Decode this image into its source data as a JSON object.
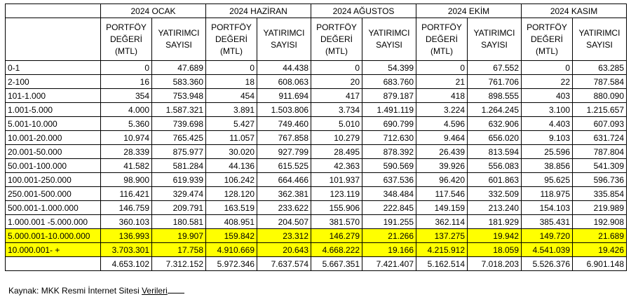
{
  "periods": [
    "2024 OCAK",
    "2024 HAZİRAN",
    "2024 AĞUSTOS",
    "2024 EKİM",
    "2024 KASIM"
  ],
  "columns": {
    "portfolio": [
      "PORTFÖY",
      "DEĞERİ",
      "(MTL)"
    ],
    "investors": [
      "YATIRIMCI",
      "SAYISI"
    ]
  },
  "rows": [
    {
      "label": "0-1",
      "values": [
        "0",
        "47.689",
        "0",
        "44.438",
        "0",
        "54.399",
        "0",
        "67.552",
        "0",
        "63.285"
      ]
    },
    {
      "label": "2-100",
      "values": [
        "16",
        "583.360",
        "18",
        "608.063",
        "20",
        "683.760",
        "21",
        "761.706",
        "22",
        "787.584"
      ]
    },
    {
      "label": "101-1.000",
      "values": [
        "354",
        "753.948",
        "454",
        "911.694",
        "417",
        "879.187",
        "418",
        "898.555",
        "403",
        "880.090"
      ]
    },
    {
      "label": "1.001-5.000",
      "values": [
        "4.000",
        "1.587.321",
        "3.891",
        "1.503.806",
        "3.734",
        "1.491.119",
        "3.224",
        "1.264.245",
        "3.100",
        "1.215.657"
      ]
    },
    {
      "label": "5.001-10.000",
      "values": [
        "5.360",
        "739.698",
        "5.427",
        "749.460",
        "5.010",
        "690.799",
        "4.596",
        "632.906",
        "4.403",
        "607.093"
      ]
    },
    {
      "label": "10.001-20.000",
      "values": [
        "10.974",
        "765.425",
        "11.057",
        "767.858",
        "10.279",
        "712.630",
        "9.464",
        "656.020",
        "9.103",
        "631.724"
      ]
    },
    {
      "label": "20.001-50.000",
      "values": [
        "28.339",
        "875.977",
        "30.020",
        "927.799",
        "28.495",
        "878.392",
        "26.439",
        "813.594",
        "25.596",
        "787.804"
      ]
    },
    {
      "label": "50.001-100.000",
      "values": [
        "41.582",
        "581.284",
        "44.136",
        "615.525",
        "42.363",
        "590.569",
        "39.926",
        "556.083",
        "38.856",
        "541.309"
      ]
    },
    {
      "label": "100.001-250.000",
      "values": [
        "98.900",
        "619.939",
        "106.242",
        "664.466",
        "101.937",
        "637.536",
        "96.420",
        "601.863",
        "95.625",
        "596.736"
      ]
    },
    {
      "label": "250.001-500.000",
      "values": [
        "116.421",
        "329.474",
        "128.120",
        "362.381",
        "123.119",
        "348.484",
        "117.546",
        "332.509",
        "118.975",
        "335.854"
      ]
    },
    {
      "label": "500.001-1.000.000",
      "values": [
        "146.759",
        "209.791",
        "163.519",
        "233.622",
        "155.906",
        "222.845",
        "149.159",
        "213.240",
        "154.103",
        "219.989"
      ]
    },
    {
      "label": "1.000.001 -5.000.000",
      "values": [
        "360.103",
        "180.581",
        "408.951",
        "204.507",
        "381.570",
        "191.255",
        "362.114",
        "181.929",
        "385.431",
        "192.908"
      ]
    },
    {
      "label": "5.000.001-10.000.000",
      "highlight": true,
      "values": [
        "136.993",
        "19.907",
        "159.842",
        "23.312",
        "146.279",
        "21.266",
        "137.275",
        "19.942",
        "149.720",
        "21.689"
      ]
    },
    {
      "label": "10.000.001- +",
      "highlight": true,
      "values": [
        "3.703.301",
        "17.758",
        "4.910.669",
        "20.643",
        "4.668.222",
        "19.166",
        "4.215.912",
        "18.059",
        "4.541.039",
        "19.426"
      ]
    }
  ],
  "totals": [
    "4.653.102",
    "7.312.152",
    "5.972.346",
    "7.637.574",
    "5.667.351",
    "7.421.407",
    "5.162.514",
    "7.018.203",
    "5.526.376",
    "6.901.148"
  ],
  "source": {
    "prefix": "Kaynak: MKK Resmi İnternet Sitesi ",
    "underlined": "Verileri"
  },
  "colors": {
    "highlight": "#ffff00",
    "border": "#000000"
  }
}
